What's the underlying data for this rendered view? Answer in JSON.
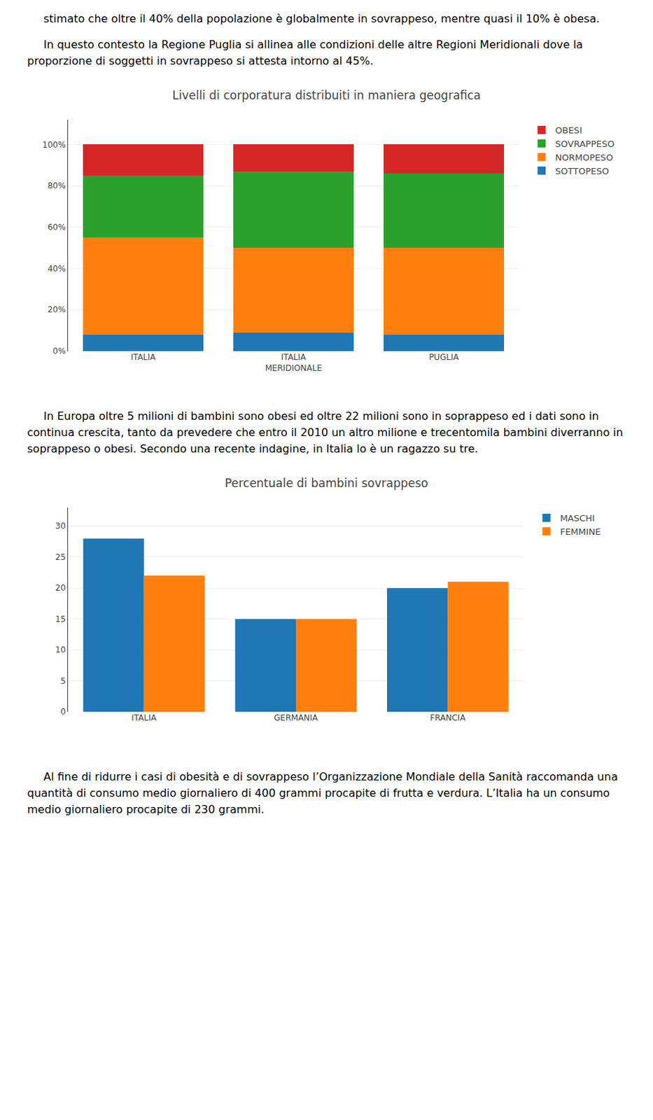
{
  "chart_data": [
    {
      "type": "bar",
      "stacked": true,
      "title": "Livelli di corporatura distribuiti in maniera geografica",
      "annotations": [
        "stimato che oltre il 40% della popolazione è globalmente in sovrappeso, mentre quasi il 10% è obesa.",
        "In questo contesto la Regione Puglia si allinea alle condizioni delle altre Regioni Meridionali dove la proporzione di soggetti in sovrappeso si attesta intorno al 45%."
      ],
      "categories": [
        "ITALIA",
        "ITALIA\nMERIDIONALE",
        "PUGLIA"
      ],
      "series": [
        {
          "name": "SOTTOPESO",
          "values": [
            8,
            9,
            8
          ]
        },
        {
          "name": "NORMOPESO",
          "values": [
            47,
            41,
            42
          ]
        },
        {
          "name": "SOVRAPPESO",
          "values": [
            30,
            37,
            36
          ]
        },
        {
          "name": "OBESI",
          "values": [
            15,
            13,
            14
          ]
        }
      ],
      "ylim": [
        0,
        112
      ],
      "yticks": [
        {
          "value": 0,
          "label": "0%"
        },
        {
          "value": 20,
          "label": "20%"
        },
        {
          "value": 40,
          "label": "40%"
        },
        {
          "value": 60,
          "label": "60%"
        },
        {
          "value": 80,
          "label": "80%"
        },
        {
          "value": 100,
          "label": "100%"
        }
      ],
      "grid": true,
      "legend": "right"
    },
    {
      "type": "bar",
      "title": "Percentuale di bambini sovrappeso",
      "annotations": [
        "In Europa oltre 5 milioni di bambini sono obesi ed oltre 22 milioni sono in soprappeso ed i dati sono in continua crescita, tanto da prevedere che entro il 2010 un altro milione e trecentomila bambini diverranno in soprappeso o obesi. Secondo una recente indagine, in Italia lo è un ragazzo su tre.",
        "Al fine di ridurre i casi di obesità e di sovrappeso l’Organizzazione Mondiale della Sanità raccomanda una quantità di consumo medio giornaliero di 400 grammi procapite di frutta e verdura. L’Italia ha un consumo medio giornaliero procapite di 230 grammi."
      ],
      "categories": [
        "ITALIA",
        "GERMANIA",
        "FRANCIA"
      ],
      "series": [
        {
          "name": "MASCHI",
          "values": [
            28,
            15,
            20
          ]
        },
        {
          "name": "FEMMINE",
          "values": [
            22,
            15,
            21
          ]
        }
      ],
      "ylim": [
        0,
        33
      ],
      "yticks": [
        0,
        5,
        10,
        15,
        20,
        25,
        30
      ],
      "grid": true,
      "legend": "right"
    }
  ]
}
